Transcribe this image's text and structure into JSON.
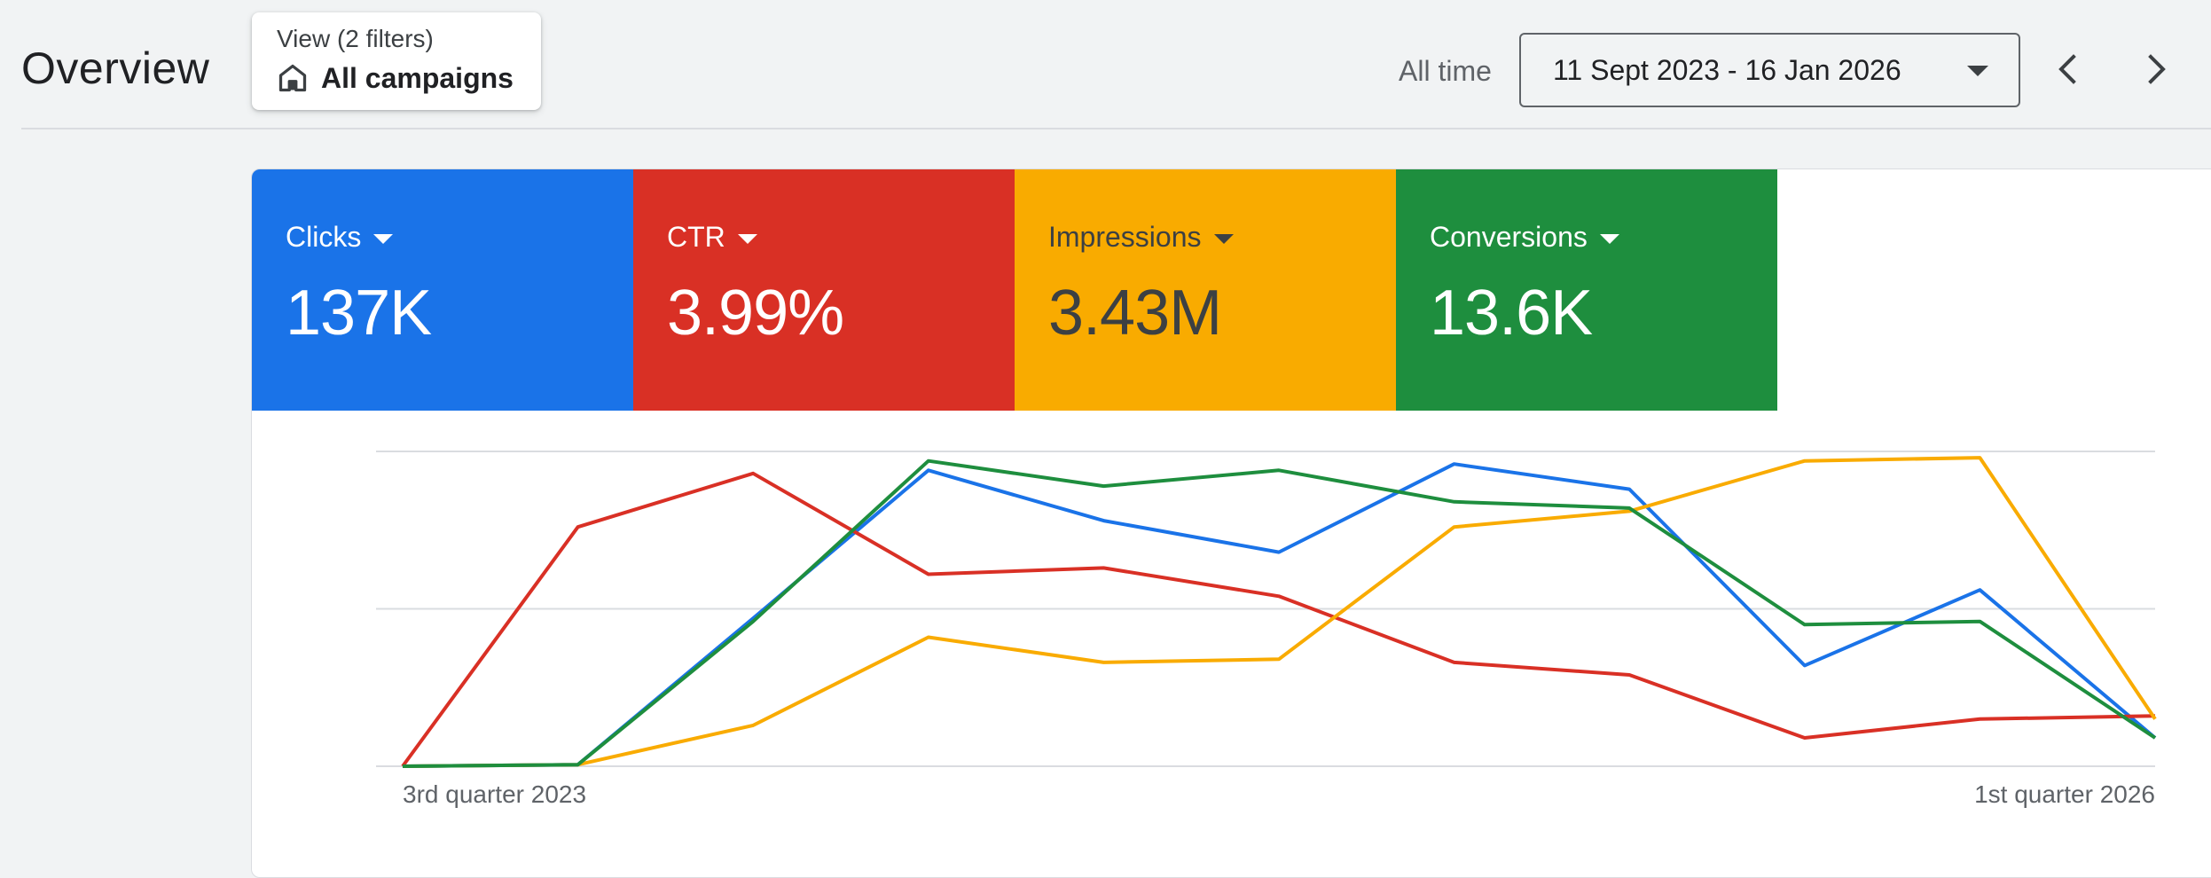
{
  "page": {
    "title": "Overview"
  },
  "view_filter": {
    "subtitle": "View (2 filters)",
    "label": "All campaigns",
    "icon": "home-icon"
  },
  "date_filter": {
    "label": "All time",
    "range": "11 Sept 2023 - 16 Jan 2026",
    "dropdown_icon": "caret-down-icon",
    "prev_icon": "chevron-left-icon",
    "next_icon": "chevron-right-icon"
  },
  "metrics": [
    {
      "label": "Clicks",
      "value": "137K",
      "bg": "#1a73e8",
      "fg": "#ffffff"
    },
    {
      "label": "CTR",
      "value": "3.99%",
      "bg": "#d93025",
      "fg": "#ffffff"
    },
    {
      "label": "Impressions",
      "value": "3.43M",
      "bg": "#f9ab00",
      "fg": "#3c4043"
    },
    {
      "label": "Conversions",
      "value": "13.6K",
      "bg": "#1e8e3e",
      "fg": "#ffffff"
    }
  ],
  "chart_data": {
    "type": "line",
    "title": "",
    "xlabel": "",
    "ylabel": "",
    "x": [
      0,
      1,
      2,
      3,
      4,
      5,
      6,
      7,
      8,
      9,
      10
    ],
    "x_tick_labels": [
      {
        "index": 0,
        "label": "3rd quarter 2023"
      },
      {
        "index": 10,
        "label": "1st quarter 2026"
      }
    ],
    "ylim": [
      0,
      100
    ],
    "grid": true,
    "series": [
      {
        "name": "Clicks",
        "color": "#1a73e8",
        "values": [
          0,
          0.5,
          47,
          94,
          78,
          68,
          96,
          88,
          32,
          56,
          9
        ]
      },
      {
        "name": "CTR",
        "color": "#d93025",
        "values": [
          0,
          76,
          93,
          61,
          63,
          54,
          33,
          29,
          9,
          15,
          16
        ]
      },
      {
        "name": "Impressions",
        "color": "#f9ab00",
        "values": [
          0,
          0.5,
          13,
          41,
          33,
          34,
          76,
          81,
          97,
          98,
          15
        ]
      },
      {
        "name": "Conversions",
        "color": "#1e8e3e",
        "values": [
          0,
          0.5,
          46,
          97,
          89,
          94,
          84,
          82,
          45,
          46,
          9
        ]
      }
    ]
  }
}
